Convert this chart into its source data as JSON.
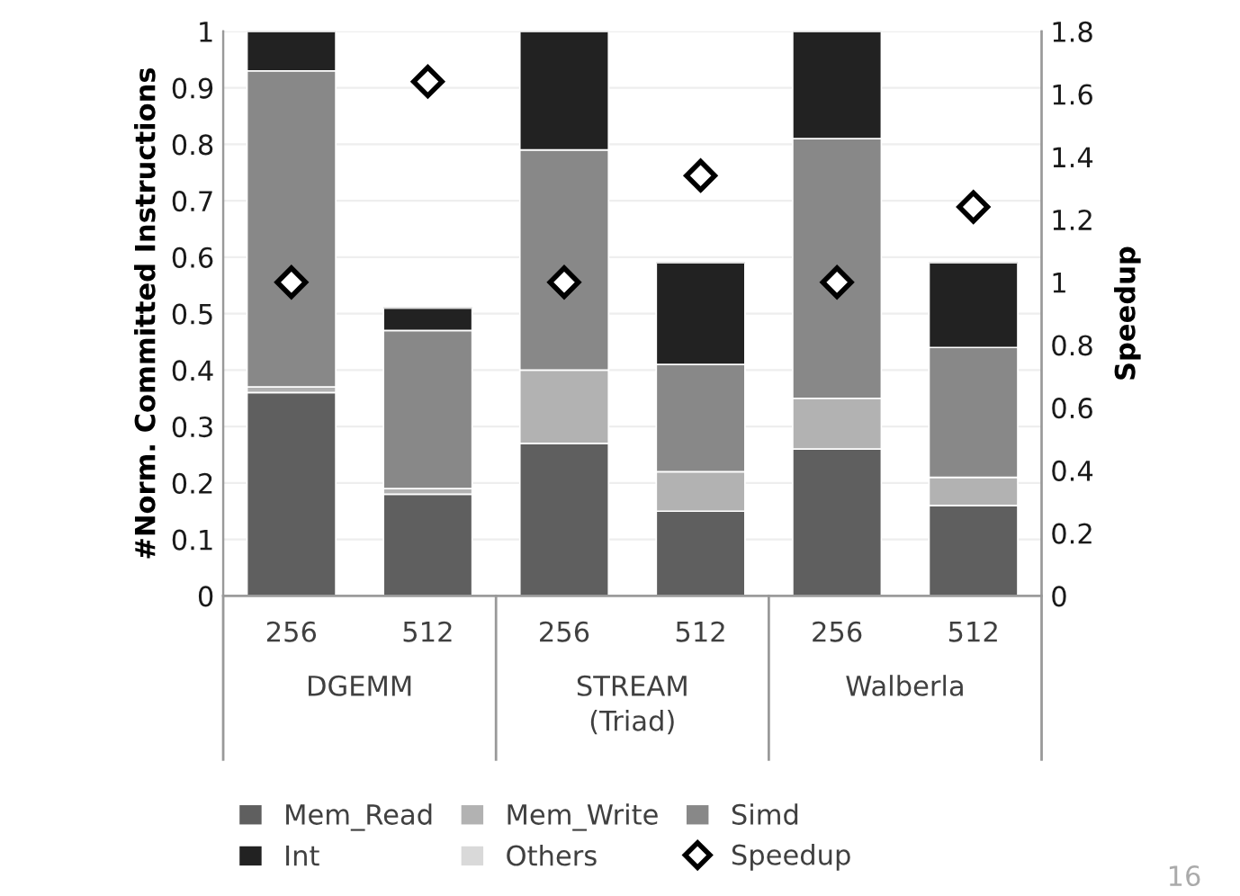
{
  "chart_data": {
    "type": "bar",
    "stacked": true,
    "categories": [
      "256",
      "512",
      "256",
      "512",
      "256",
      "512"
    ],
    "series": [
      {
        "name": "Mem_Read",
        "color": "#5f5f5f",
        "values": [
          0.36,
          0.18,
          0.27,
          0.15,
          0.26,
          0.16
        ]
      },
      {
        "name": "Mem_Write",
        "color": "#b2b2b2",
        "values": [
          0.01,
          0.01,
          0.13,
          0.07,
          0.09,
          0.05
        ]
      },
      {
        "name": "Simd",
        "color": "#888888",
        "values": [
          0.56,
          0.28,
          0.39,
          0.19,
          0.46,
          0.23
        ]
      },
      {
        "name": "Int",
        "color": "#222222",
        "values": [
          0.07,
          0.04,
          0.21,
          0.18,
          0.19,
          0.15
        ]
      },
      {
        "name": "Others",
        "color": "#d9d9d9",
        "values": [
          0,
          0,
          0,
          0,
          0,
          0
        ]
      },
      {
        "name": "Speedup",
        "type": "scatter",
        "axis": "y2",
        "marker": "diamond",
        "color": "#000000",
        "values": [
          1.0,
          1.64,
          1.0,
          1.34,
          1.0,
          1.24
        ]
      }
    ],
    "ylabel": "#Norm. Committed Instructions",
    "y2label": "Speedup",
    "ylim": [
      0,
      1
    ],
    "yticks": [
      0,
      0.1,
      0.2,
      0.3,
      0.4,
      0.5,
      0.6,
      0.7,
      0.8,
      0.9,
      1
    ],
    "y2lim": [
      0,
      1.8
    ],
    "y2ticks": [
      0,
      0.2,
      0.4,
      0.6,
      0.8,
      1,
      1.2,
      1.4,
      1.6,
      1.8
    ],
    "annotations": [
      "DGEMM",
      "STREAM\n(Triad)",
      "Walberla",
      "16"
    ],
    "grid": "y",
    "legend": "bottom"
  }
}
